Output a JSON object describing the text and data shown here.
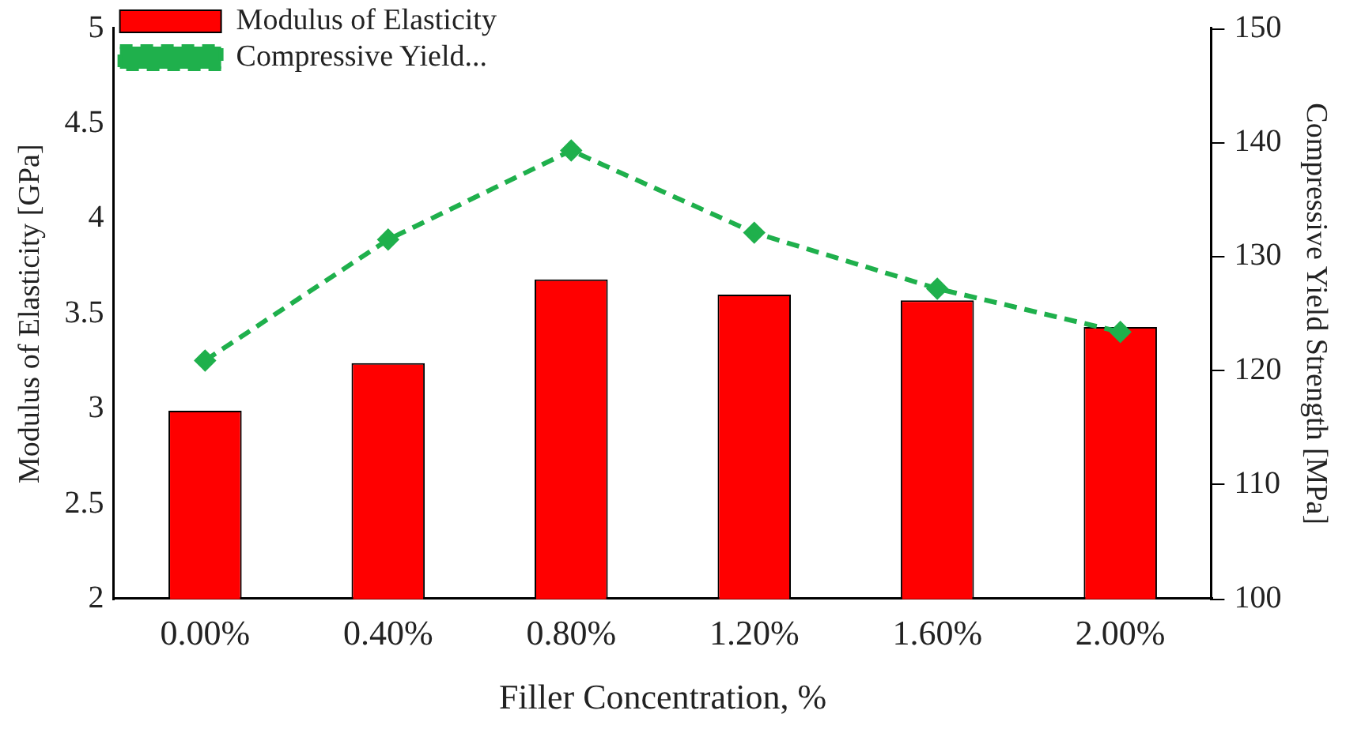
{
  "chart_data": {
    "type": "bar",
    "xlabel": "Filler Concentration, %",
    "ylabel": "Modulus of Elasticity [GPa]",
    "y2label": "Compressive Yield Strength [MPa]",
    "categories": [
      "0.00%",
      "0.40%",
      "0.80%",
      "1.20%",
      "1.60%",
      "2.00%"
    ],
    "series": [
      {
        "name": "Modulus of Elasticity",
        "color": "#ff0000",
        "values": [
          2.99,
          3.24,
          3.68,
          3.6,
          3.57,
          3.43
        ]
      },
      {
        "name": "Compressive Yield...",
        "type": "line",
        "axis": "y2",
        "color": "#1fb04c",
        "values": [
          120.9,
          131.5,
          139.3,
          132.1,
          127.2,
          123.4
        ],
        "marker": "diamond",
        "line_style": "dashed"
      }
    ],
    "ylim": [
      2,
      5
    ],
    "yticks": [
      2,
      2.5,
      3,
      3.5,
      4,
      4.5,
      5
    ],
    "y2lim": [
      100,
      150
    ],
    "y2ticks": [
      100,
      110,
      120,
      130,
      140,
      150
    ],
    "grid": false,
    "legend": "top left"
  }
}
